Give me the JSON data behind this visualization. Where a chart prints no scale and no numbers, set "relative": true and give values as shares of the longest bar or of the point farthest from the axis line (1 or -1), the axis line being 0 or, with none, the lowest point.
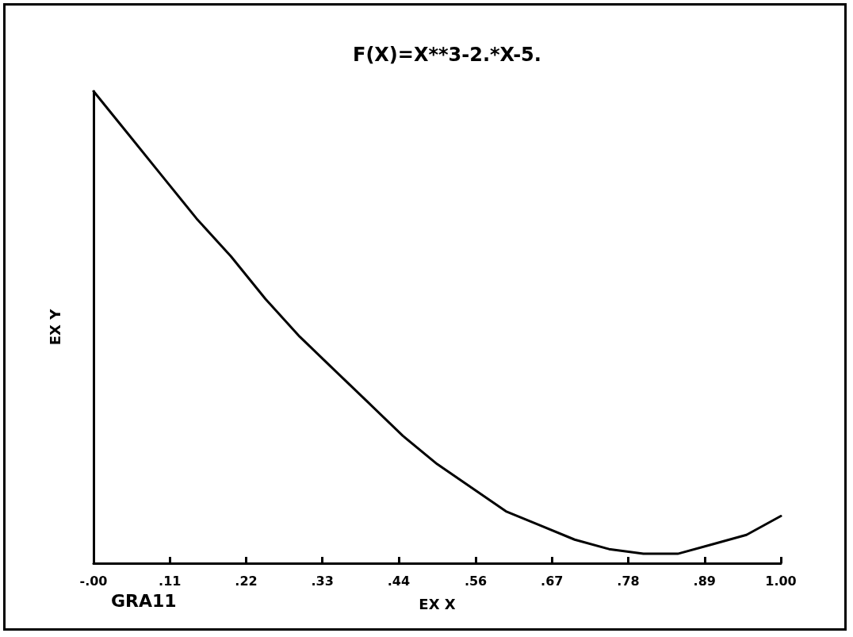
{
  "chart_data": {
    "type": "line",
    "relative": true,
    "title": "F(X)=X**3-2.*X-5.",
    "xlabel": "EX X",
    "ylabel": "EX Y",
    "annotations": [
      "GRA11"
    ],
    "x": [
      0,
      0.05,
      0.1,
      0.15,
      0.2,
      0.25,
      0.3,
      0.35,
      0.4,
      0.45,
      0.5,
      0.55,
      0.6,
      0.65,
      0.7,
      0.75,
      0.8,
      0.85,
      0.9,
      0.95,
      1.0
    ],
    "series": [
      {
        "color": "#000000",
        "values": [
          1.0,
          0.91,
          0.82,
          0.73,
          0.65,
          0.56,
          0.48,
          0.41,
          0.34,
          0.27,
          0.21,
          0.16,
          0.11,
          0.08,
          0.05,
          0.03,
          0.02,
          0.02,
          0.04,
          0.06,
          0.1
        ]
      }
    ],
    "xlim": [
      0,
      1
    ],
    "xticks": [
      {
        "value": 0,
        "label": "-.00"
      },
      {
        "value": 0.111,
        "label": ".11"
      },
      {
        "value": 0.222,
        "label": ".22"
      },
      {
        "value": 0.333,
        "label": ".33"
      },
      {
        "value": 0.444,
        "label": ".44"
      },
      {
        "value": 0.556,
        "label": ".56"
      },
      {
        "value": 0.667,
        "label": ".67"
      },
      {
        "value": 0.778,
        "label": ".78"
      },
      {
        "value": 0.889,
        "label": ".89"
      },
      {
        "value": 1,
        "label": "1.00"
      }
    ],
    "grid": false,
    "marker": "none",
    "line_style": "solid"
  }
}
